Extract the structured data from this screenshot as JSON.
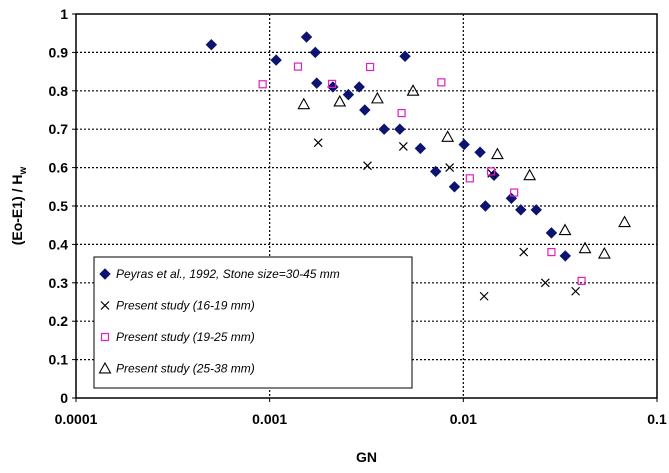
{
  "chart_data": {
    "type": "scatter",
    "xlabel": "GN",
    "ylabel": "(Eo-E1) / H",
    "ylabel_subscript": "w",
    "xscale": "log",
    "xlim": [
      0.0001,
      0.1
    ],
    "ylim": [
      0,
      1
    ],
    "x_ticks": [
      0.0001,
      0.001,
      0.01,
      0.1
    ],
    "x_tick_labels": [
      "0.0001",
      "0.001",
      "0.01",
      "0.1"
    ],
    "y_ticks": [
      0,
      0.1,
      0.2,
      0.3,
      0.4,
      0.5,
      0.6,
      0.7,
      0.8,
      0.9,
      1
    ],
    "y_tick_labels": [
      "0",
      "0.1",
      "0.2",
      "0.3",
      "0.4",
      "0.5",
      "0.6",
      "0.7",
      "0.8",
      "0.9",
      "1"
    ],
    "grid": "dotted",
    "legend_position": "bottom-left",
    "series": [
      {
        "name": "Peyras et al., 1992, Stone size=30-45 mm",
        "marker": "diamond-filled",
        "color": "#0c1470",
        "points": [
          [
            0.0005,
            0.92
          ],
          [
            0.00108,
            0.88
          ],
          [
            0.00155,
            0.94
          ],
          [
            0.00172,
            0.9
          ],
          [
            0.00175,
            0.82
          ],
          [
            0.00212,
            0.81
          ],
          [
            0.00255,
            0.79
          ],
          [
            0.0029,
            0.81
          ],
          [
            0.0031,
            0.75
          ],
          [
            0.0039,
            0.7
          ],
          [
            0.0047,
            0.7
          ],
          [
            0.005,
            0.89
          ],
          [
            0.006,
            0.65
          ],
          [
            0.0072,
            0.59
          ],
          [
            0.009,
            0.55
          ],
          [
            0.0101,
            0.66
          ],
          [
            0.0122,
            0.64
          ],
          [
            0.013,
            0.5
          ],
          [
            0.0144,
            0.58
          ],
          [
            0.0177,
            0.52
          ],
          [
            0.0198,
            0.49
          ],
          [
            0.0238,
            0.49
          ],
          [
            0.0285,
            0.43
          ],
          [
            0.0336,
            0.37
          ]
        ]
      },
      {
        "name": "Present study (16-19 mm)",
        "marker": "x",
        "color": "#000000",
        "points": [
          [
            0.00178,
            0.665
          ],
          [
            0.0032,
            0.605
          ],
          [
            0.0049,
            0.655
          ],
          [
            0.0085,
            0.6
          ],
          [
            0.0128,
            0.265
          ],
          [
            0.014,
            0.585
          ],
          [
            0.0205,
            0.38
          ],
          [
            0.0265,
            0.3
          ],
          [
            0.038,
            0.278
          ]
        ]
      },
      {
        "name": "Present study (19-25 mm)",
        "marker": "square-open",
        "color": "#e020c0",
        "points": [
          [
            0.00092,
            0.817
          ],
          [
            0.0014,
            0.863
          ],
          [
            0.0021,
            0.818
          ],
          [
            0.0033,
            0.862
          ],
          [
            0.0048,
            0.742
          ],
          [
            0.0077,
            0.822
          ],
          [
            0.0108,
            0.572
          ],
          [
            0.0139,
            0.59
          ],
          [
            0.0183,
            0.535
          ],
          [
            0.0285,
            0.38
          ],
          [
            0.0408,
            0.305
          ]
        ]
      },
      {
        "name": "Present study (25-38 mm)",
        "marker": "triangle-open",
        "color": "#000000",
        "points": [
          [
            0.0015,
            0.765
          ],
          [
            0.0023,
            0.772
          ],
          [
            0.0036,
            0.78
          ],
          [
            0.0055,
            0.8
          ],
          [
            0.0083,
            0.68
          ],
          [
            0.015,
            0.635
          ],
          [
            0.022,
            0.58
          ],
          [
            0.0335,
            0.437
          ],
          [
            0.0425,
            0.39
          ],
          [
            0.0535,
            0.376
          ],
          [
            0.068,
            0.458
          ]
        ]
      }
    ]
  }
}
